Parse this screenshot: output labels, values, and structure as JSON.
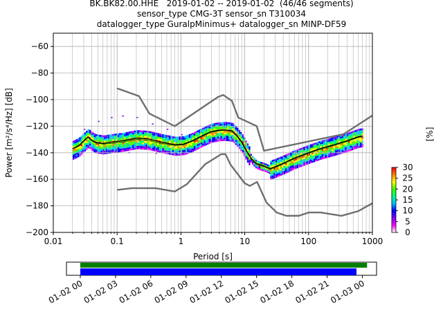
{
  "title": {
    "line1": "BK.BK82.00.HHE   2019-01-02 -- 2019-01-02  (46/46 segments)",
    "line2": "sensor_type CMG-3T sensor_sn T310034",
    "line3": "datalogger_type GuralpMinimus+ datalogger_sn MINP-DF59"
  },
  "chart_data": [
    {
      "type": "heatmap",
      "xlabel": "Period [s]",
      "ylabel": "Power [m²/s⁴/Hz] [dB]",
      "x_scale": "log",
      "xlim": [
        0.01,
        1000
      ],
      "ylim": [
        -200,
        -50
      ],
      "x_ticks": [
        0.01,
        0.1,
        1,
        10,
        100,
        1000
      ],
      "x_tick_labels": [
        "0.01",
        "0.1",
        "1",
        "10",
        "100",
        "1000"
      ],
      "y_ticks": [
        -200,
        -180,
        -160,
        -140,
        -120,
        -100,
        -80,
        -60
      ],
      "y_tick_labels": [
        "−200",
        "−180",
        "−160",
        "−140",
        "−120",
        "−100",
        "−80",
        "−60"
      ],
      "grid": true,
      "colorbar": {
        "label": "[%]",
        "range": [
          0,
          30
        ],
        "ticks": [
          0,
          5,
          10,
          15,
          20,
          25,
          30
        ],
        "tick_labels": [
          "0",
          "5",
          "10",
          "15",
          "20",
          "25",
          "30"
        ],
        "colors": [
          "#ffffff",
          "#ff00ff",
          "#7a00ff",
          "#0000ff",
          "#00c0ff",
          "#00ff80",
          "#40ff00",
          "#ffff00",
          "#ff8000",
          "#ff0000"
        ]
      },
      "noise_models": {
        "nhnm": [
          [
            0.1,
            -91.5
          ],
          [
            0.22,
            -97.4
          ],
          [
            0.32,
            -110.5
          ],
          [
            0.8,
            -120
          ],
          [
            3.8,
            -98
          ],
          [
            4.6,
            -96.5
          ],
          [
            6.3,
            -101
          ],
          [
            7.9,
            -113.5
          ],
          [
            15.4,
            -120
          ],
          [
            20,
            -138.5
          ],
          [
            354.8,
            -126
          ],
          [
            1000,
            -112
          ]
        ],
        "nlnm": [
          [
            0.1,
            -168
          ],
          [
            0.17,
            -166.7
          ],
          [
            0.4,
            -166.7
          ],
          [
            0.8,
            -169.2
          ],
          [
            1.24,
            -163.7
          ],
          [
            2.4,
            -148.6
          ],
          [
            4.3,
            -141.1
          ],
          [
            5,
            -141.1
          ],
          [
            6,
            -149
          ],
          [
            10,
            -163
          ],
          [
            12,
            -165
          ],
          [
            15.6,
            -162
          ],
          [
            21.9,
            -177.5
          ],
          [
            31.6,
            -185
          ],
          [
            45,
            -187.5
          ],
          [
            70,
            -187.5
          ],
          [
            101,
            -185
          ],
          [
            154,
            -185
          ],
          [
            328,
            -187.5
          ],
          [
            600,
            -184
          ],
          [
            1000,
            -178
          ]
        ]
      },
      "mean_curve": [
        [
          0.02,
          -137
        ],
        [
          0.023,
          -135.5
        ],
        [
          0.026,
          -134
        ],
        [
          0.03,
          -131
        ],
        [
          0.035,
          -128
        ],
        [
          0.04,
          -130.5
        ],
        [
          0.045,
          -132
        ],
        [
          0.06,
          -133
        ],
        [
          0.08,
          -132
        ],
        [
          0.12,
          -131
        ],
        [
          0.2,
          -129
        ],
        [
          0.3,
          -129.5
        ],
        [
          0.5,
          -132
        ],
        [
          0.8,
          -134
        ],
        [
          1.1,
          -133.5
        ],
        [
          1.5,
          -131
        ],
        [
          2.2,
          -127
        ],
        [
          3,
          -124
        ],
        [
          4,
          -123
        ],
        [
          5,
          -122.8
        ],
        [
          6.3,
          -123.5
        ],
        [
          7.5,
          -127
        ],
        [
          9,
          -132
        ],
        [
          10.5,
          -138
        ],
        [
          12.5,
          -144
        ],
        [
          15,
          -148
        ],
        [
          20,
          -150
        ],
        [
          25,
          -152
        ],
        [
          30,
          -150.5
        ],
        [
          40,
          -148
        ],
        [
          60,
          -144
        ],
        [
          100,
          -140
        ],
        [
          150,
          -137
        ],
        [
          250,
          -134
        ],
        [
          400,
          -131
        ],
        [
          600,
          -128
        ],
        [
          700,
          -127.5
        ]
      ],
      "mode_curve": [
        [
          0.02,
          -137
        ],
        [
          0.023,
          -136
        ],
        [
          0.026,
          -134.5
        ],
        [
          0.03,
          -131.5
        ],
        [
          0.035,
          -128.5
        ],
        [
          0.04,
          -131
        ],
        [
          0.045,
          -132.5
        ],
        [
          0.06,
          -133.5
        ],
        [
          0.08,
          -133
        ],
        [
          0.12,
          -132
        ],
        [
          0.2,
          -130
        ],
        [
          0.3,
          -130.5
        ],
        [
          0.5,
          -133
        ],
        [
          0.8,
          -134.5
        ],
        [
          1.1,
          -134
        ],
        [
          1.5,
          -131.5
        ],
        [
          2.2,
          -127.5
        ],
        [
          3,
          -124.5
        ],
        [
          4,
          -123.5
        ],
        [
          5,
          -123
        ],
        [
          6.3,
          -124
        ],
        [
          7.5,
          -127.5
        ],
        [
          9,
          -132.5
        ],
        [
          10.5,
          -138.5
        ],
        [
          12.5,
          -144.5
        ],
        [
          15,
          -148.5
        ],
        [
          20,
          -150.5
        ],
        [
          25,
          -152.5
        ],
        [
          30,
          -151
        ],
        [
          40,
          -148.5
        ],
        [
          60,
          -144.5
        ],
        [
          100,
          -140.5
        ],
        [
          150,
          -137.5
        ],
        [
          250,
          -134.5
        ],
        [
          400,
          -131.5
        ],
        [
          600,
          -128.5
        ],
        [
          700,
          -128
        ]
      ],
      "psd_spread": {
        "period_range": [
          0.02,
          700
        ],
        "upper_outliers": [
          [
            0.03,
            -122
          ],
          [
            0.05,
            -116
          ],
          [
            0.08,
            -113
          ],
          [
            0.12,
            -112
          ],
          [
            0.2,
            -113
          ],
          [
            0.35,
            -118
          ],
          [
            0.6,
            -122
          ],
          [
            1,
            -126
          ]
        ],
        "lower_outliers": [
          [
            0.05,
            -140
          ],
          [
            0.15,
            -139.5
          ],
          [
            0.4,
            -140
          ],
          [
            1,
            -140
          ]
        ]
      }
    },
    {
      "type": "bar",
      "title": "",
      "xlim": [
        "01-02 00",
        "01-03 00"
      ],
      "x_ticks": [
        "01-02 00",
        "01-02 03",
        "01-02 06",
        "01-02 09",
        "01-02 12",
        "01-02 15",
        "01-02 18",
        "01-02 21",
        "01-03 00"
      ],
      "x_tick_hours": [
        0,
        3,
        6,
        9,
        12,
        15,
        18,
        21,
        24
      ],
      "series": [
        {
          "color": "#008000",
          "start_hour": 0.0,
          "end_hour": 24.4
        },
        {
          "color": "#0000ff",
          "start_hour": 0.0,
          "end_hour": 23.5
        }
      ]
    }
  ]
}
